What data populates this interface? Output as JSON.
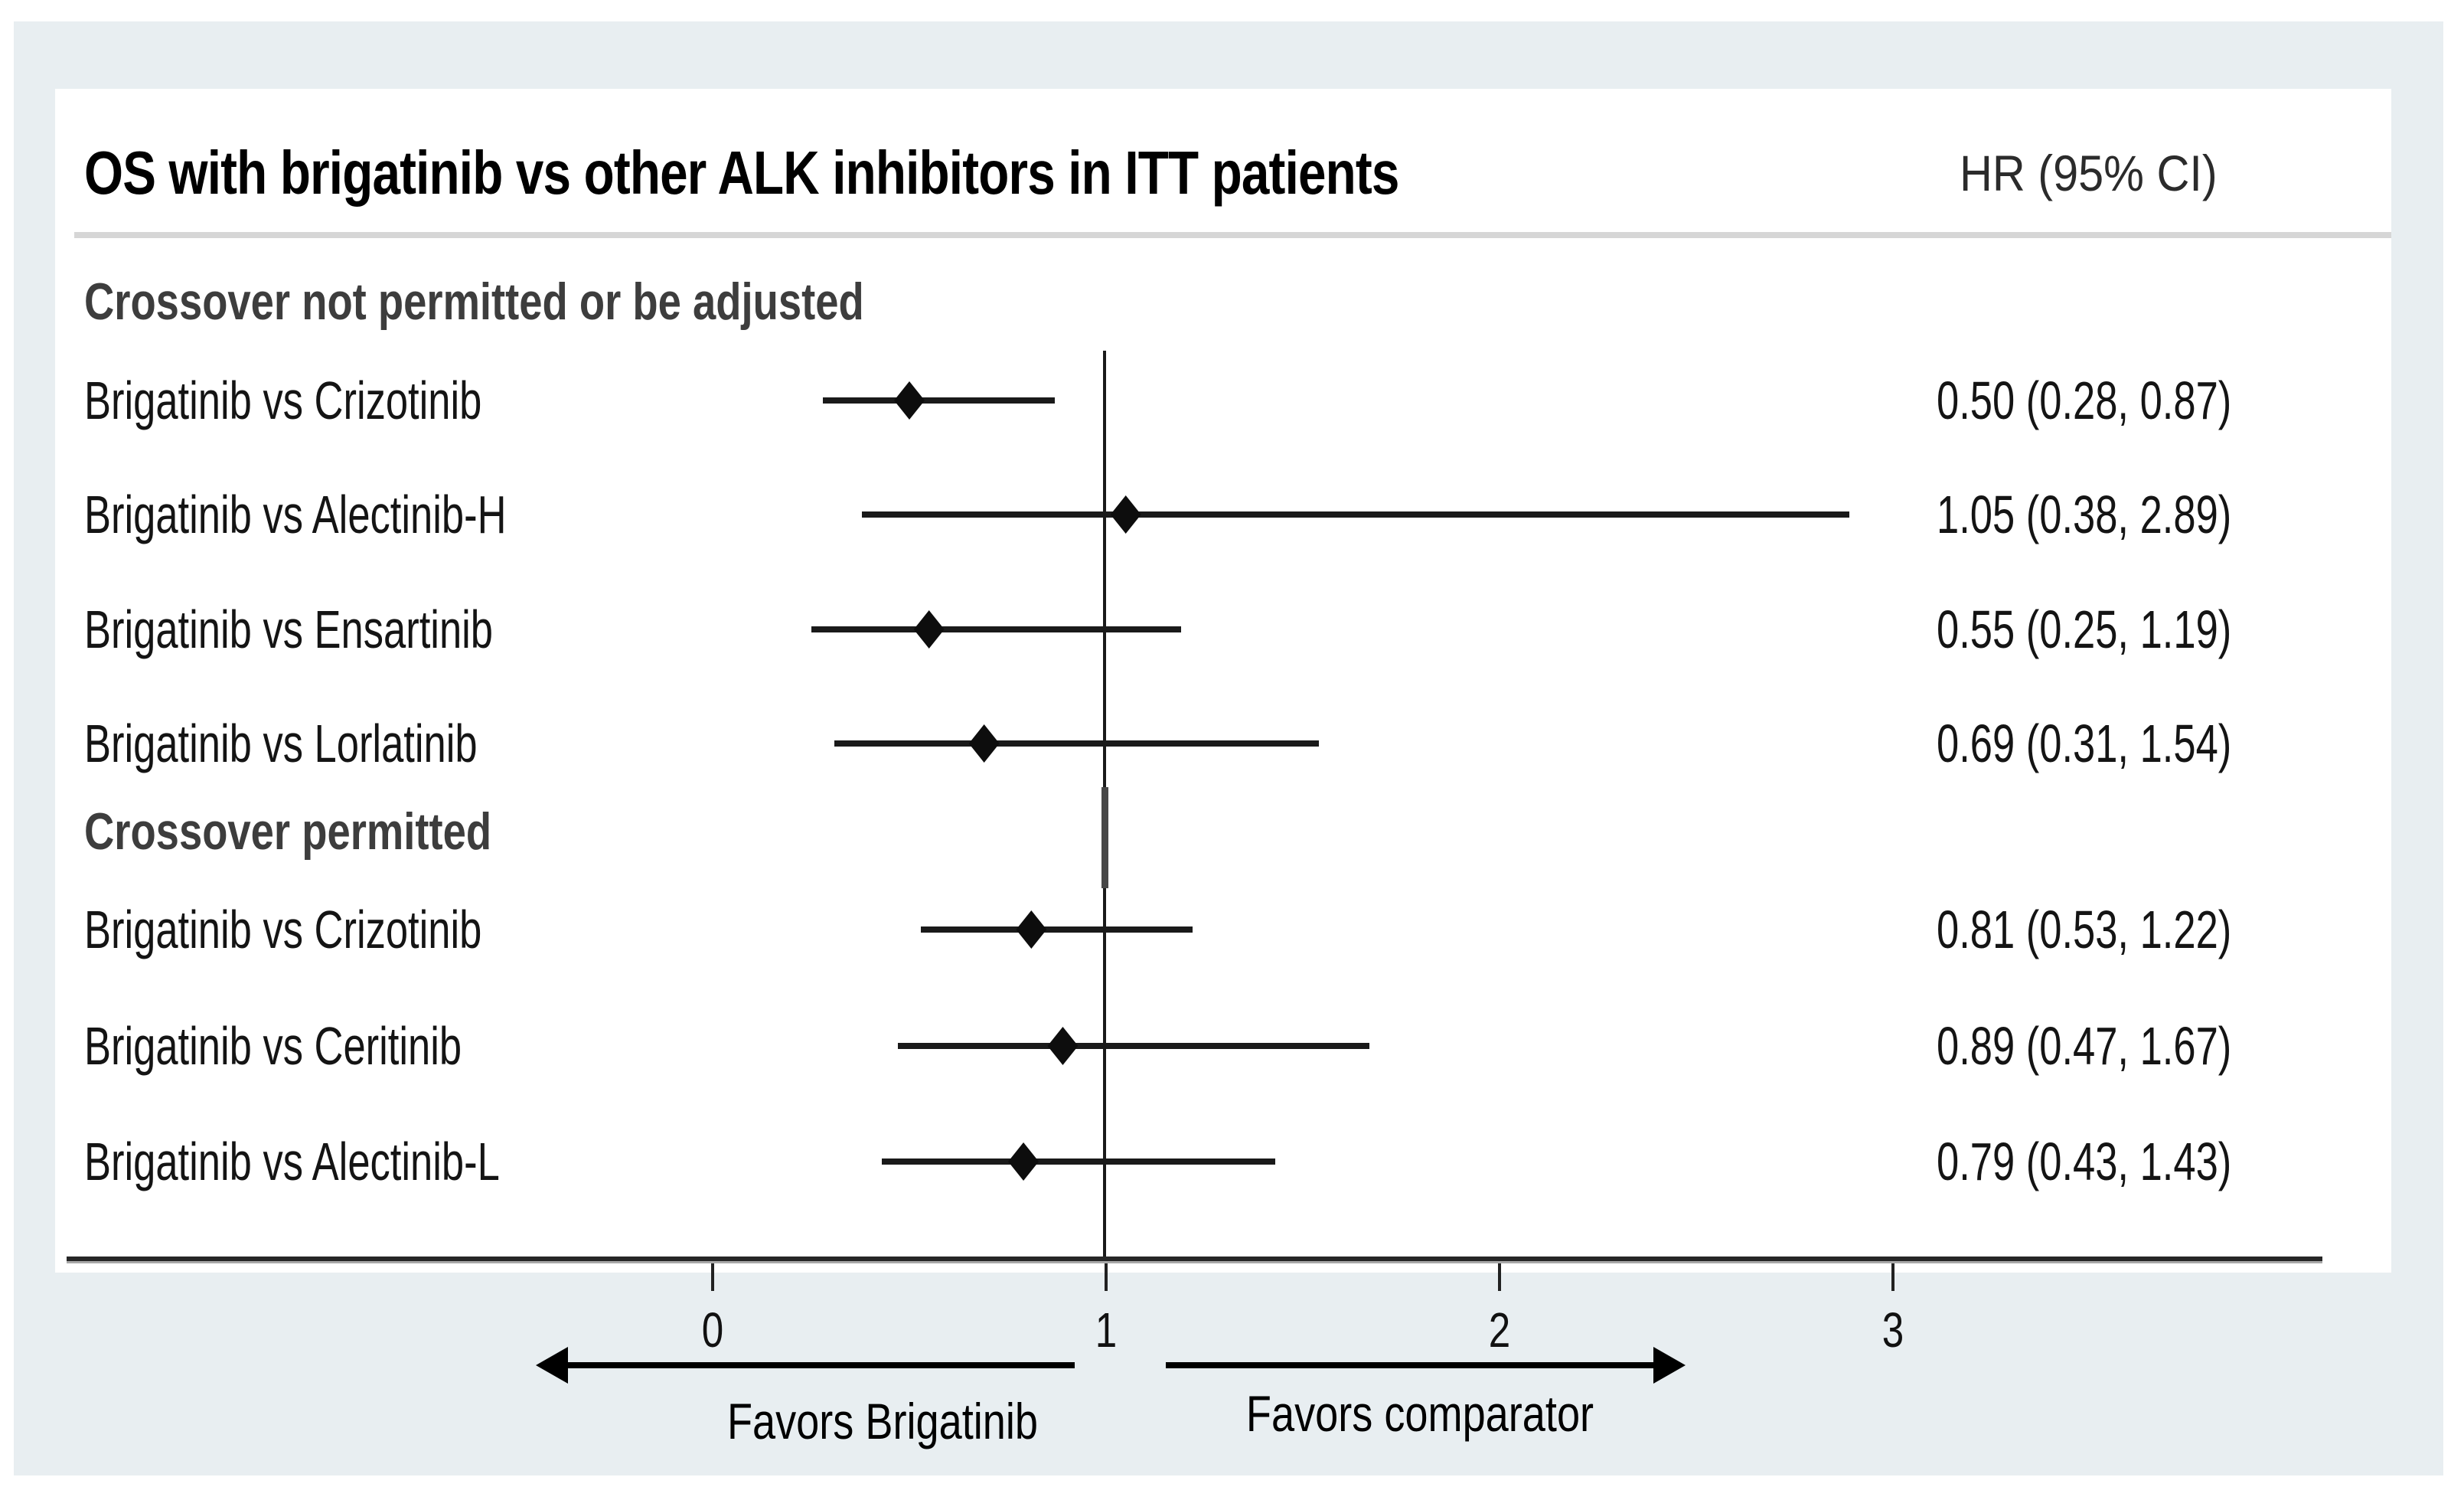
{
  "chart_data": {
    "type": "forest",
    "title": "OS with brigatinib vs other ALK inhibitors in ITT patients",
    "column_header": "HR (95% CI)",
    "x_ticks": [
      0,
      1,
      2,
      3
    ],
    "ref_line": 1,
    "xlim": [
      -0.65,
      3.6
    ],
    "arrow_left_label": "Favors Brigatinib",
    "arrow_right_label": "Favors comparator",
    "groups": [
      {
        "label": "Crossover not permitted or be adjusted",
        "rows": [
          {
            "label": "Brigatinib vs Crizotinib",
            "hr": 0.5,
            "ci_low": 0.28,
            "ci_high": 0.87,
            "display": "0.50 (0.28, 0.87)"
          },
          {
            "label": "Brigatinib vs Alectinib-H",
            "hr": 1.05,
            "ci_low": 0.38,
            "ci_high": 2.89,
            "display": "1.05 (0.38, 2.89)"
          },
          {
            "label": "Brigatinib vs Ensartinib",
            "hr": 0.55,
            "ci_low": 0.25,
            "ci_high": 1.19,
            "display": "0.55 (0.25, 1.19)"
          },
          {
            "label": "Brigatinib vs Lorlatinib",
            "hr": 0.69,
            "ci_low": 0.31,
            "ci_high": 1.54,
            "display": "0.69 (0.31, 1.54)"
          }
        ]
      },
      {
        "label": "Crossover permitted",
        "rows": [
          {
            "label": "Brigatinib vs Crizotinib",
            "hr": 0.81,
            "ci_low": 0.53,
            "ci_high": 1.22,
            "display": "0.81 (0.53, 1.22)"
          },
          {
            "label": "Brigatinib vs Ceritinib",
            "hr": 0.89,
            "ci_low": 0.47,
            "ci_high": 1.67,
            "display": "0.89 (0.47, 1.67)"
          },
          {
            "label": "Brigatinib vs Alectinib-L",
            "hr": 0.79,
            "ci_low": 0.43,
            "ci_high": 1.43,
            "display": "0.79 (0.43, 1.43)"
          }
        ]
      }
    ],
    "colors": {
      "page_background": "#e8eef1",
      "panel": "#ffffff",
      "divider": "#d6d6d6",
      "line": "#1a1a1a",
      "section_header_text": "#3d3d3d",
      "body_text": "#141414"
    }
  }
}
